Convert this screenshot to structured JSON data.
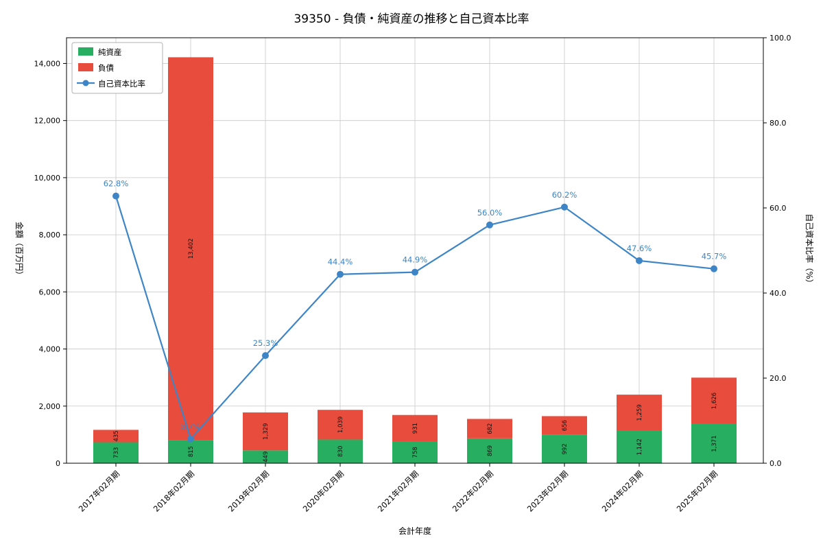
{
  "chart_data": {
    "type": "bar",
    "subtype": "stacked-bar-with-line",
    "title": "39350 - 負債・純資産の推移と自己資本比率",
    "xlabel": "会計年度",
    "ylabel_left": "金額（百万円）",
    "ylabel_right": "自己資本比率（%）",
    "categories": [
      "2017年02月期",
      "2018年02月期",
      "2019年02月期",
      "2020年02月期",
      "2021年02月期",
      "2022年02月期",
      "2023年02月期",
      "2024年02月期",
      "2025年02月期"
    ],
    "series": [
      {
        "name": "純資産",
        "type": "bar",
        "color": "#27ae60",
        "values": [
          733,
          815,
          449,
          830,
          758,
          869,
          992,
          1142,
          1371
        ],
        "labels": [
          "733",
          "815",
          "449",
          "830",
          "758",
          "869",
          "992",
          "1,142",
          "1,371"
        ]
      },
      {
        "name": "負債",
        "type": "bar",
        "color": "#e74c3c",
        "values": [
          435,
          13402,
          1329,
          1039,
          931,
          682,
          656,
          1259,
          1626
        ],
        "labels": [
          "435",
          "13,402",
          "1,329",
          "1,039",
          "931",
          "682",
          "656",
          "1,259",
          "1,626"
        ]
      },
      {
        "name": "自己資本比率",
        "type": "line",
        "axis": "right",
        "color": "#3d85c6",
        "values": [
          62.8,
          5.7,
          25.3,
          44.4,
          44.9,
          56.0,
          60.2,
          47.6,
          45.7
        ],
        "labels": [
          "62.8%",
          "5.7%",
          "25.3%",
          "44.4%",
          "44.9%",
          "56.0%",
          "60.2%",
          "47.6%",
          "45.7%"
        ]
      }
    ],
    "ylim_left": [
      0,
      14900
    ],
    "ylim_right": [
      0,
      100
    ],
    "yticks_left": {
      "values": [
        0,
        2000,
        4000,
        6000,
        8000,
        10000,
        12000,
        14000
      ],
      "labels": [
        "0",
        "2,000",
        "4,000",
        "6,000",
        "8,000",
        "10,000",
        "12,000",
        "14,000"
      ]
    },
    "yticks_right": {
      "values": [
        0,
        20,
        40,
        60,
        80,
        100
      ],
      "labels": [
        "0.0",
        "20.0",
        "40.0",
        "60.0",
        "80.0",
        "100.0"
      ]
    },
    "legend": {
      "position": "upper-left",
      "items": [
        "純資産",
        "負債",
        "自己資本比率"
      ]
    },
    "grid": true,
    "colors": {
      "grid": "#c8c8c8",
      "axis": "#000000",
      "bar_label_text": "#111111"
    }
  }
}
